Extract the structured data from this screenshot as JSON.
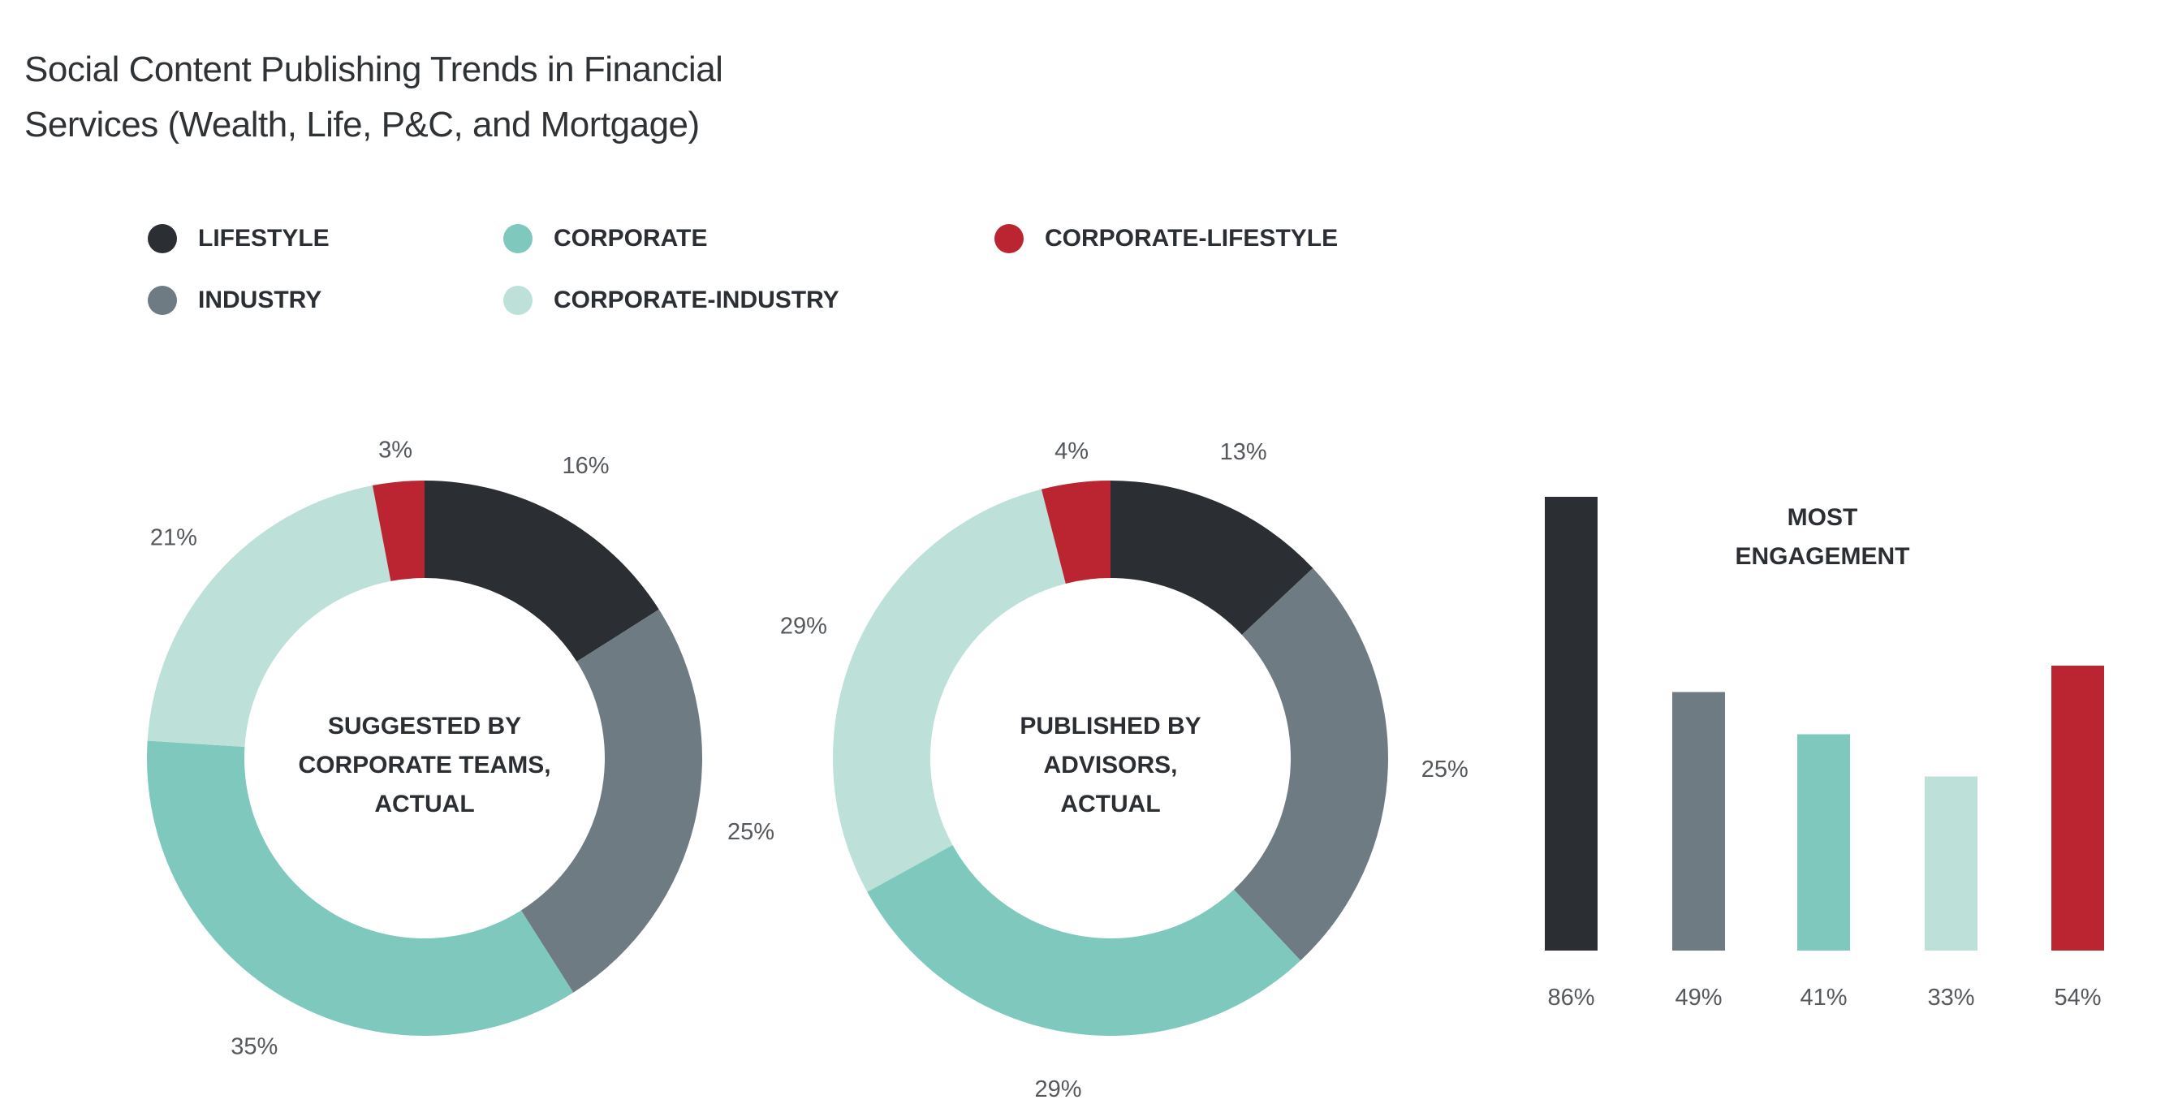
{
  "chart_data": [
    {
      "type": "pie",
      "variant": "donut",
      "title": "Social Content Publishing Trends in Financial Services (Wealth, Life, P&C, and Mortgage)",
      "center_label": [
        "SUGGESTED BY",
        "CORPORATE TEAMS,",
        "ACTUAL"
      ],
      "categories": [
        "LIFESTYLE",
        "INDUSTRY",
        "CORPORATE",
        "CORPORATE-INDUSTRY",
        "CORPORATE-LIFESTYLE"
      ],
      "values": [
        16,
        25,
        35,
        21,
        3
      ],
      "labels": [
        "16%",
        "25%",
        "35%",
        "21%",
        "3%"
      ]
    },
    {
      "type": "pie",
      "variant": "donut",
      "center_label": [
        "PUBLISHED BY",
        "ADVISORS,",
        "ACTUAL"
      ],
      "categories": [
        "LIFESTYLE",
        "INDUSTRY",
        "CORPORATE",
        "CORPORATE-INDUSTRY",
        "CORPORATE-LIFESTYLE"
      ],
      "values": [
        13,
        25,
        29,
        29,
        4
      ],
      "labels": [
        "13%",
        "25%",
        "29%",
        "29%",
        "4%"
      ]
    },
    {
      "type": "bar",
      "title": [
        "MOST",
        "ENGAGEMENT"
      ],
      "categories": [
        "LIFESTYLE",
        "INDUSTRY",
        "CORPORATE",
        "CORPORATE-INDUSTRY",
        "CORPORATE-LIFESTYLE"
      ],
      "values": [
        86,
        49,
        41,
        33,
        54
      ],
      "labels": [
        "86%",
        "49%",
        "41%",
        "33%",
        "54%"
      ],
      "ylim": [
        0,
        86
      ]
    }
  ],
  "title_lines": [
    "Social Content Publishing Trends in Financial",
    "Services (Wealth, Life, P&C, and Mortgage)"
  ],
  "legend": [
    {
      "label": "LIFESTYLE",
      "color": "#2b2f33"
    },
    {
      "label": "INDUSTRY",
      "color": "#6f7b83"
    },
    {
      "label": "CORPORATE",
      "color": "#7ec8be"
    },
    {
      "label": "CORPORATE-INDUSTRY",
      "color": "#bde0d8"
    },
    {
      "label": "CORPORATE-LIFESTYLE",
      "color": "#bb2532"
    }
  ]
}
